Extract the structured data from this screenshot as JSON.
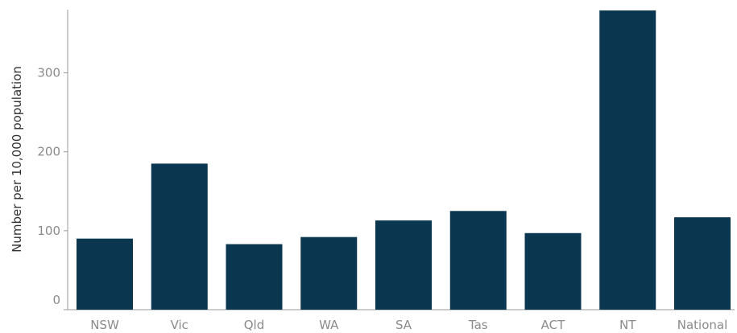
{
  "chart_data": {
    "type": "bar",
    "categories": [
      "NSW",
      "Vic",
      "Qld",
      "WA",
      "SA",
      "Tas",
      "ACT",
      "NT",
      "National"
    ],
    "values": [
      90,
      185,
      83,
      92,
      113,
      125,
      97,
      379,
      117
    ],
    "title": "",
    "xlabel": "",
    "ylabel": "Number per 10,000 population",
    "ylim": [
      0,
      380
    ],
    "yticks": [
      0,
      100,
      200,
      300
    ],
    "grid": false,
    "bar_color": "#0b3650",
    "axis_color": "#999999"
  }
}
